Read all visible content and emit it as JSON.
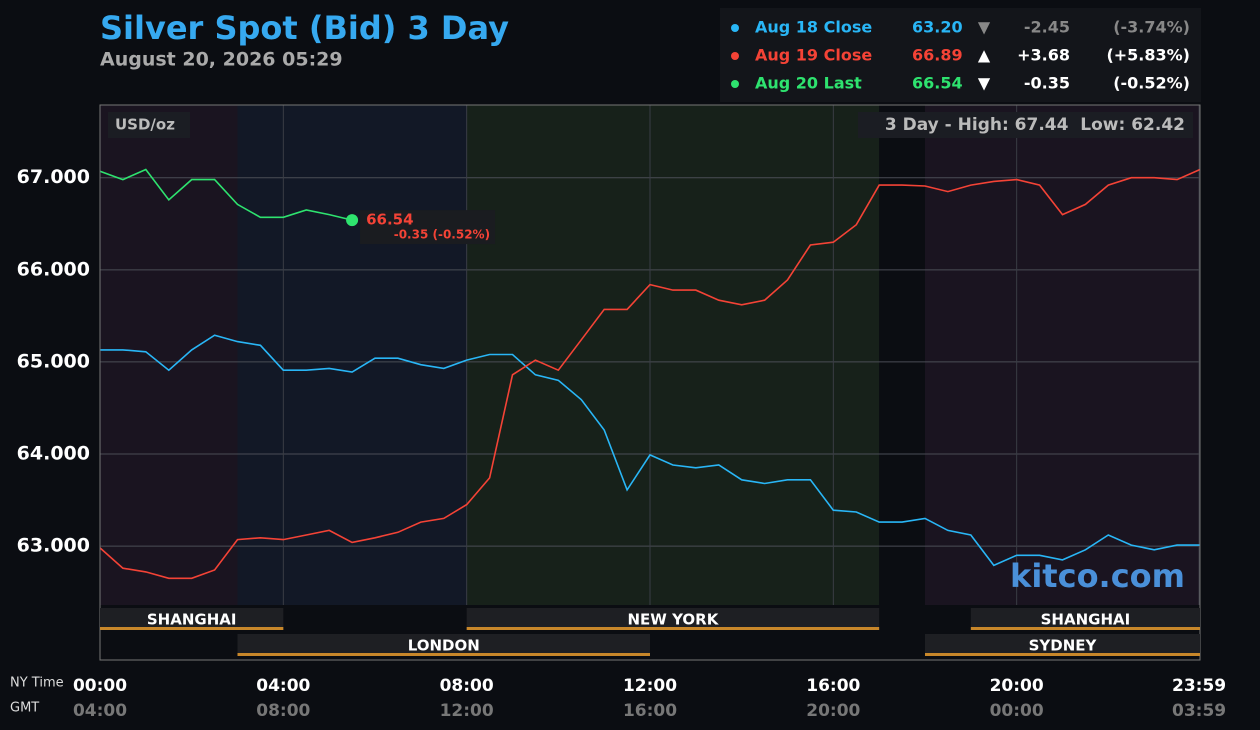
{
  "chart_data": {
    "type": "line",
    "title": "Silver Spot (Bid) 3 Day",
    "subtitle": "August 20, 2026 05:29",
    "unit_label": "USD/oz",
    "range_label": "3 Day - High: 67.44  Low: 62.42",
    "watermark": "kitco.com",
    "x_axis_label": "NY Time",
    "x2_axis_label": "GMT",
    "xlim": [
      0,
      24
    ],
    "ylim": [
      62.36,
      67.79
    ],
    "xticks": [
      {
        "value": 0,
        "label": "00:00"
      },
      {
        "value": 4,
        "label": "04:00"
      },
      {
        "value": 8,
        "label": "08:00"
      },
      {
        "value": 12,
        "label": "12:00"
      },
      {
        "value": 16,
        "label": "16:00"
      },
      {
        "value": 20,
        "label": "20:00"
      },
      {
        "value": 23.98,
        "label": "23:59"
      }
    ],
    "x2ticks": [
      "04:00",
      "08:00",
      "12:00",
      "16:00",
      "20:00",
      "00:00",
      "03:59"
    ],
    "yticks": [
      {
        "value": 63,
        "label": "63.000"
      },
      {
        "value": 64,
        "label": "64.000"
      },
      {
        "value": 65,
        "label": "65.000"
      },
      {
        "value": 66,
        "label": "66.000"
      },
      {
        "value": 67,
        "label": "67.000"
      }
    ],
    "grid": true,
    "regions": [
      {
        "start": 0,
        "end": 3,
        "color": "#1a1420"
      },
      {
        "start": 3,
        "end": 8,
        "color": "#121826"
      },
      {
        "start": 8,
        "end": 17,
        "color": "#17211a"
      },
      {
        "start": 17,
        "end": 18,
        "color": "#0b0d12"
      },
      {
        "start": 18,
        "end": 24,
        "color": "#1a1420"
      }
    ],
    "sessions": [
      {
        "name": "SHANGHAI",
        "start": 0,
        "end": 4,
        "row": 0
      },
      {
        "name": "NEW YORK",
        "start": 8,
        "end": 17,
        "row": 0
      },
      {
        "name": "SHANGHAI",
        "start": 19,
        "end": 24,
        "row": 0
      },
      {
        "name": "LONDON",
        "start": 3,
        "end": 12,
        "row": 1
      },
      {
        "name": "SYDNEY",
        "start": 18,
        "end": 24,
        "row": 1
      }
    ],
    "x": [
      0,
      0.5,
      1,
      1.5,
      2,
      2.5,
      3,
      3.5,
      4,
      4.5,
      5,
      5.5,
      6,
      6.5,
      7,
      7.5,
      8,
      8.5,
      9,
      9.5,
      10,
      10.5,
      11,
      11.5,
      12,
      12.5,
      13,
      13.5,
      14,
      14.5,
      15,
      15.5,
      16,
      16.5,
      17,
      17.5,
      18,
      18.5,
      19,
      19.5,
      20,
      20.5,
      21,
      21.5,
      22,
      22.5,
      23,
      23.5,
      24
    ],
    "series": [
      {
        "name": "Aug 18 Close",
        "color": "#29b6f6",
        "close": "63.20",
        "arrow": "▼",
        "change": "-2.45",
        "change_pct": "(-3.74%)",
        "values": [
          65.13,
          65.13,
          65.11,
          64.91,
          65.13,
          65.29,
          65.22,
          65.18,
          64.91,
          64.91,
          64.93,
          64.89,
          65.04,
          65.04,
          64.97,
          64.93,
          65.02,
          65.08,
          65.08,
          64.86,
          64.8,
          64.59,
          64.26,
          63.61,
          63.99,
          63.88,
          63.85,
          63.88,
          63.72,
          63.68,
          63.72,
          63.72,
          63.39,
          63.37,
          63.26,
          63.26,
          63.3,
          63.17,
          63.12,
          62.79,
          62.9,
          62.9,
          62.85,
          62.96,
          63.12,
          63.01,
          62.96,
          63.01,
          63.01
        ]
      },
      {
        "name": "Aug 19 Close",
        "color": "#f44336",
        "close": "66.89",
        "arrow": "▲",
        "change": "+3.68",
        "change_pct": "(+5.83%)",
        "values": [
          62.98,
          62.76,
          62.72,
          62.65,
          62.65,
          62.74,
          63.07,
          63.09,
          63.07,
          63.12,
          63.17,
          63.04,
          63.09,
          63.15,
          63.26,
          63.3,
          63.45,
          63.74,
          64.86,
          65.02,
          64.91,
          65.24,
          65.57,
          65.57,
          65.84,
          65.78,
          65.78,
          65.67,
          65.62,
          65.67,
          65.89,
          66.27,
          66.3,
          66.49,
          66.92,
          66.92,
          66.91,
          66.85,
          66.92,
          66.96,
          66.98,
          66.92,
          66.6,
          66.71,
          66.92,
          67.0,
          67.0,
          66.98,
          67.09
        ]
      },
      {
        "name": "Aug 20 Last",
        "color": "#2ee36f",
        "close": "66.54",
        "arrow": "▼",
        "change": "-0.35",
        "change_pct": "(-0.52%)",
        "values": [
          67.07,
          66.98,
          67.09,
          66.76,
          66.98,
          66.98,
          66.71,
          66.57,
          66.57,
          66.65,
          66.6,
          66.54,
          null,
          null,
          null,
          null,
          null,
          null,
          null,
          null,
          null,
          null,
          null,
          null,
          null,
          null,
          null,
          null,
          null,
          null,
          null,
          null,
          null,
          null,
          null,
          null,
          null,
          null,
          null,
          null,
          null,
          null,
          null,
          null,
          null,
          null,
          null,
          null,
          null
        ]
      }
    ],
    "last_label": {
      "value": 66.54,
      "change": "-0.35 (-0.52%)",
      "color": "#f44336"
    }
  }
}
